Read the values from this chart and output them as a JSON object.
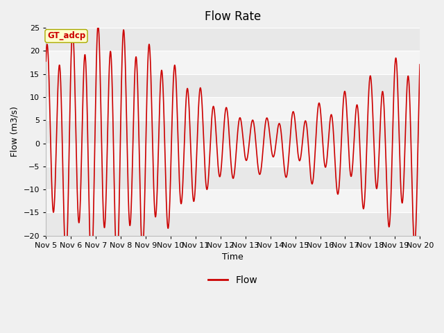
{
  "title": "Flow Rate",
  "xlabel": "Time",
  "ylabel": "Flow (m3/s)",
  "ylim": [
    -20,
    25
  ],
  "yticks": [
    -20,
    -15,
    -10,
    -5,
    0,
    5,
    10,
    15,
    20,
    25
  ],
  "line_color": "#cc0000",
  "line_width": 1.2,
  "label_text": "GT_adcp",
  "legend_label": "Flow",
  "title_fontsize": 12,
  "axis_fontsize": 9,
  "tick_fontsize": 8,
  "band_colors": [
    "#e8e8e8",
    "#f4f4f4"
  ],
  "fig_bg": "#f0f0f0",
  "plot_bg": "#ffffff"
}
